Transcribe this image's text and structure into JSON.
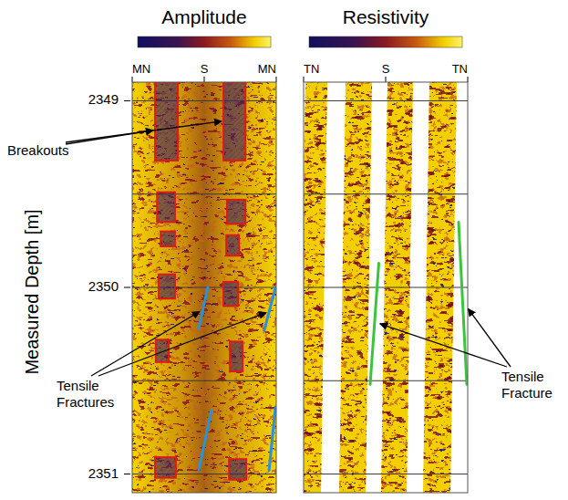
{
  "chart_data": {
    "type": "image_log",
    "y_label": "Measured Depth [m]",
    "ylim": [
      2348.9,
      2351.1
    ],
    "yticks": [
      2349,
      2350,
      2351
    ],
    "grid_lines": [
      2349,
      2349.5,
      2350,
      2350.5,
      2351
    ],
    "grid": true,
    "panels": [
      {
        "title": "Amplitude",
        "xlim": [
          0,
          360
        ],
        "xticks": [
          {
            "value": 0,
            "label": "MN"
          },
          {
            "value": 180,
            "label": "S"
          },
          {
            "value": 360,
            "label": "MN"
          }
        ],
        "breakouts": [
          {
            "azimuth_from": 57,
            "azimuth_to": 114,
            "top": 2348.9,
            "bottom": 2349.32
          },
          {
            "azimuth_from": 228,
            "azimuth_to": 283,
            "top": 2348.9,
            "bottom": 2349.32
          },
          {
            "azimuth_from": 62,
            "azimuth_to": 107,
            "top": 2349.49,
            "bottom": 2349.65
          },
          {
            "azimuth_from": 237,
            "azimuth_to": 283,
            "top": 2349.53,
            "bottom": 2349.66
          },
          {
            "azimuth_from": 71,
            "azimuth_to": 107,
            "top": 2349.7,
            "bottom": 2349.78
          },
          {
            "azimuth_from": 235,
            "azimuth_to": 267,
            "top": 2349.72,
            "bottom": 2349.83
          },
          {
            "azimuth_from": 66,
            "azimuth_to": 107,
            "top": 2349.93,
            "bottom": 2350.06
          },
          {
            "azimuth_from": 228,
            "azimuth_to": 265,
            "top": 2349.97,
            "bottom": 2350.1
          },
          {
            "azimuth_from": 59,
            "azimuth_to": 91,
            "top": 2350.28,
            "bottom": 2350.4
          },
          {
            "azimuth_from": 244,
            "azimuth_to": 276,
            "top": 2350.29,
            "bottom": 2350.45
          },
          {
            "azimuth_from": 57,
            "azimuth_to": 109,
            "top": 2350.91,
            "bottom": 2351.02
          },
          {
            "azimuth_from": 242,
            "azimuth_to": 285,
            "top": 2350.92,
            "bottom": 2351.03
          }
        ],
        "tensile_fractures": [
          {
            "azimuth_top": 189,
            "azimuth_bottom": 166,
            "top": 2350.0,
            "bottom": 2350.22
          },
          {
            "azimuth_top": 358,
            "azimuth_bottom": 330,
            "top": 2350.0,
            "bottom": 2350.23
          },
          {
            "azimuth_top": 198,
            "azimuth_bottom": 166,
            "top": 2350.66,
            "bottom": 2350.98
          },
          {
            "azimuth_top": 358,
            "azimuth_bottom": 342,
            "top": 2350.64,
            "bottom": 2350.98
          }
        ]
      },
      {
        "title": "Resistivity",
        "xlim": [
          0,
          360
        ],
        "xticks": [
          {
            "value": 0,
            "label": "TN"
          },
          {
            "value": 180,
            "label": "S"
          },
          {
            "value": 360,
            "label": "TN"
          }
        ],
        "breakouts": [],
        "tensile_fractures": [
          {
            "azimuth_top": 165,
            "azimuth_bottom": 146,
            "top": 2349.87,
            "bottom": 2350.52
          },
          {
            "azimuth_top": 340,
            "azimuth_bottom": 358,
            "top": 2349.65,
            "bottom": 2350.52
          }
        ]
      }
    ],
    "annotations": [
      {
        "text": "Breakouts"
      },
      {
        "text": "Tensile Fractures"
      },
      {
        "text": "Tensile Fracture"
      }
    ]
  }
}
